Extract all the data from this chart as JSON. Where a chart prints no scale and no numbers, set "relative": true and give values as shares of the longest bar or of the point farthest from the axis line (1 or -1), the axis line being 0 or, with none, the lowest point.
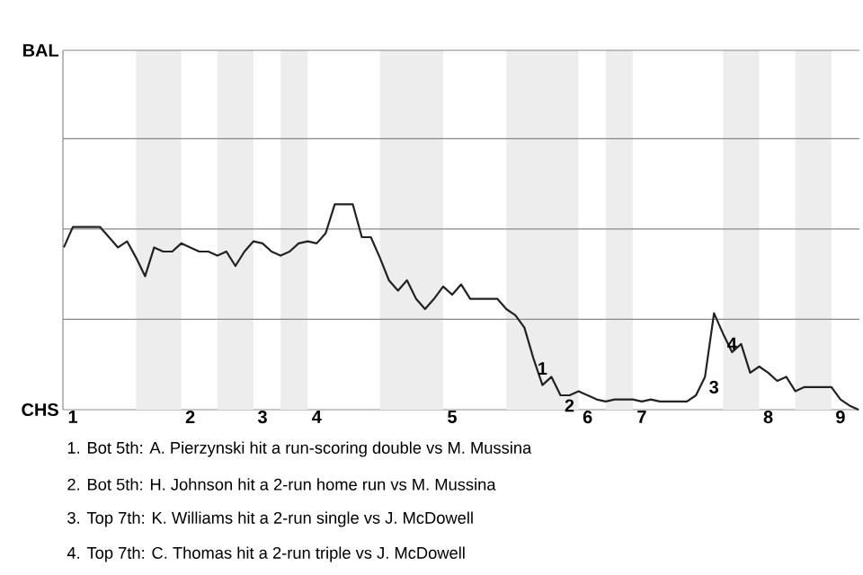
{
  "chart_data": {
    "type": "line",
    "relative": true,
    "categories": [
      null,
      "1",
      null,
      null,
      null,
      null,
      null,
      null,
      null,
      null,
      null,
      null,
      null,
      null,
      "2",
      null,
      null,
      null,
      null,
      null,
      null,
      null,
      "3",
      null,
      null,
      null,
      null,
      null,
      "4",
      null,
      null,
      null,
      null,
      null,
      null,
      null,
      null,
      null,
      null,
      null,
      null,
      null,
      null,
      "5",
      null,
      null,
      null,
      null,
      null,
      null,
      null,
      null,
      null,
      null,
      null,
      null,
      null,
      null,
      "6",
      null,
      null,
      null,
      null,
      null,
      "7",
      null,
      null,
      null,
      null,
      null,
      null,
      null,
      null,
      null,
      null,
      null,
      null,
      null,
      "8",
      null,
      null,
      null,
      null,
      null,
      null,
      null,
      "9",
      null,
      null
    ],
    "marker": "none",
    "line_style": "solid",
    "series": [
      {
        "color": "#222222",
        "values": [
          0.79,
          0.89,
          0.89,
          0.89,
          0.89,
          0.84,
          0.79,
          0.82,
          0.74,
          0.65,
          0.79,
          0.77,
          0.77,
          0.81,
          0.79,
          0.77,
          0.77,
          0.75,
          0.77,
          0.7,
          0.77,
          0.82,
          0.81,
          0.77,
          0.75,
          0.77,
          0.81,
          0.82,
          0.81,
          0.86,
          1,
          1,
          1,
          0.84,
          0.84,
          0.74,
          0.63,
          0.58,
          0.63,
          0.54,
          0.49,
          0.54,
          0.6,
          0.56,
          0.61,
          0.54,
          0.54,
          0.54,
          0.54,
          0.49,
          0.46,
          0.4,
          0.25,
          0.12,
          0.16,
          0.07,
          0.07,
          0.09,
          0.07,
          0.05,
          0.04,
          0.05,
          0.05,
          0.05,
          0.04,
          0.05,
          0.04,
          0.04,
          0.04,
          0.04,
          0.07,
          0.16,
          0.47,
          0.37,
          0.28,
          0.32,
          0.18,
          0.21,
          0.18,
          0.14,
          0.16,
          0.09,
          0.11,
          0.11,
          0.11,
          0.11,
          0.05,
          0.02,
          0
        ]
      }
    ],
    "ref_lines": [
      {
        "axis": "y",
        "value": 0.44,
        "color": "#888888"
      },
      {
        "axis": "y",
        "value": 0.88,
        "color": "#888888"
      },
      {
        "axis": "y",
        "value": 1.32,
        "color": "#888888"
      },
      {
        "axis": "y",
        "value": 1.75,
        "color": "#888888"
      }
    ],
    "annotations": [
      "BAL",
      "CHS",
      {
        "text": "1",
        "y": 0.25
      },
      {
        "text": "2",
        "y": 0.07
      },
      {
        "text": "3",
        "y": 0.16
      },
      {
        "text": "4",
        "y": 0.37
      },
      "1. Bot 5th: A. Pierzynski hit a run-scoring double vs M. Mussina",
      "2. Bot 5th: H. Johnson hit a 2-run home run vs M. Mussina",
      "3. Top 7th: K. Williams hit a 2-run single vs J. McDowell",
      "4. Top 7th: C. Thomas hit a 2-run triple vs J. McDowell"
    ]
  }
}
